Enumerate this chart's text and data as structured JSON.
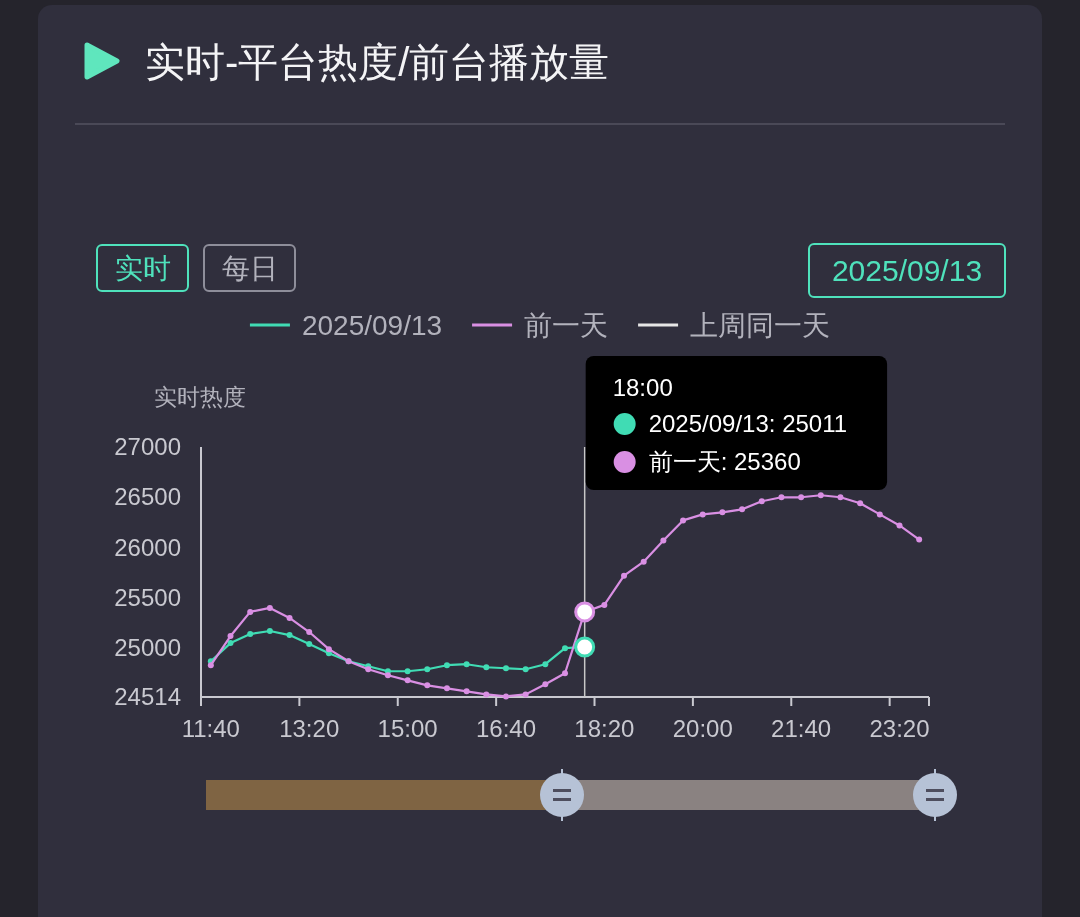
{
  "chart_data": {
    "type": "line",
    "title": "实时-平台热度/前台播放量",
    "ylabel": "实时热度",
    "x": [
      11.6667,
      12,
      12.3333,
      12.6667,
      13,
      13.3333,
      13.6667,
      14,
      14.3333,
      14.6667,
      15,
      15.3333,
      15.6667,
      16,
      16.3333,
      16.6667,
      17,
      17.3333,
      17.6667,
      18,
      18.3333,
      18.6667,
      19,
      19.3333,
      19.6667,
      20,
      20.3333,
      20.6667,
      21,
      21.3333,
      21.6667,
      22,
      22.3333,
      22.6667,
      23,
      23.3333,
      23.6667
    ],
    "series": [
      {
        "name": "2025/09/13",
        "color": "#40dcb4",
        "values": [
          24870,
          25050,
          25140,
          25170,
          25130,
          25040,
          24950,
          24870,
          24820,
          24770,
          24770,
          24790,
          24830,
          24840,
          24810,
          24800,
          24790,
          24840,
          25000,
          25011,
          null,
          null,
          null,
          null,
          null,
          null,
          null,
          null,
          null,
          null,
          null,
          null,
          null,
          null,
          null,
          null,
          null
        ]
      },
      {
        "name": "前一天",
        "color": "#d98fe3",
        "values": [
          24830,
          25120,
          25360,
          25400,
          25300,
          25160,
          24990,
          24870,
          24790,
          24730,
          24680,
          24630,
          24600,
          24570,
          24540,
          24520,
          24540,
          24640,
          24750,
          25360,
          25430,
          25720,
          25860,
          26070,
          26270,
          26330,
          26350,
          26380,
          26460,
          26500,
          26500,
          26520,
          26500,
          26440,
          26330,
          26220,
          26080
        ]
      },
      {
        "name": "上周同一天",
        "color": "#e6e6e6",
        "values": [
          null,
          null,
          null,
          null,
          null,
          null,
          null,
          null,
          null,
          null,
          null,
          null,
          null,
          null,
          null,
          null,
          null,
          null,
          null,
          null,
          null,
          null,
          null,
          null,
          null,
          null,
          null,
          null,
          null,
          null,
          null,
          null,
          null,
          null,
          null,
          null,
          null
        ]
      }
    ],
    "xlim": [
      11.5,
      23.8333
    ],
    "ylim": [
      24514,
      27000
    ],
    "xticks": [
      {
        "value": 11.6667,
        "label": "11:40"
      },
      {
        "value": 13.3333,
        "label": "13:20"
      },
      {
        "value": 15,
        "label": "15:00"
      },
      {
        "value": 16.6667,
        "label": "16:40"
      },
      {
        "value": 18.3333,
        "label": "18:20"
      },
      {
        "value": 20,
        "label": "20:00"
      },
      {
        "value": 21.6667,
        "label": "21:40"
      },
      {
        "value": 23.3333,
        "label": "23:20"
      }
    ],
    "yticks": [
      24514,
      25000,
      25500,
      26000,
      26500,
      27000
    ],
    "legend": "top",
    "marker": "circle",
    "line_style": "solid",
    "ref_lines": [
      {
        "axis": "x",
        "value": 18,
        "label": "18:00",
        "color": "#c8c8c8"
      }
    ],
    "annotations": [
      "实时",
      "每日",
      "2025/09/13",
      "2025/09/13: 25011",
      "前一天: 25360"
    ]
  }
}
